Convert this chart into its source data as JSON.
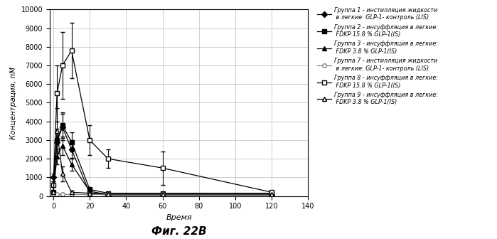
{
  "title": "Фиг. 22В",
  "xlabel": "Время",
  "ylabel": "Концентрация, пМ",
  "xlim": [
    -2,
    140
  ],
  "ylim": [
    0,
    10000
  ],
  "yticks": [
    0,
    1000,
    2000,
    3000,
    4000,
    5000,
    6000,
    7000,
    8000,
    9000,
    10000
  ],
  "xticks": [
    0,
    20,
    40,
    60,
    80,
    100,
    120,
    140
  ],
  "series": [
    {
      "label": "Группа 1 - инстилляция жидкости\n в легкие: GLP-1- контроль (LIS)",
      "x": [
        0,
        2,
        5,
        10,
        20,
        30,
        60,
        120
      ],
      "y": [
        1000,
        2900,
        3700,
        2500,
        150,
        50,
        50,
        50
      ],
      "yerr": [
        200,
        500,
        700,
        500,
        50,
        30,
        30,
        30
      ],
      "marker": "D",
      "filled": true,
      "color": "black"
    },
    {
      "label": "Группа 2 - инсуффляция в легкие:\n FDKP 15.8 % GLP-1(IS)",
      "x": [
        0,
        2,
        5,
        10,
        20,
        30,
        60,
        120
      ],
      "y": [
        200,
        3000,
        3800,
        2900,
        350,
        150,
        150,
        150
      ],
      "yerr": [
        50,
        600,
        700,
        500,
        80,
        50,
        50,
        50
      ],
      "marker": "s",
      "filled": true,
      "color": "black"
    },
    {
      "label": "Группа 3 - инсуффляция в легкие:\n FDKP 3.8 % GLP-1(IS)",
      "x": [
        0,
        2,
        5,
        10,
        20,
        30,
        60,
        120
      ],
      "y": [
        200,
        2100,
        2700,
        1700,
        250,
        80,
        80,
        80
      ],
      "yerr": [
        50,
        400,
        500,
        350,
        60,
        30,
        30,
        30
      ],
      "marker": "^",
      "filled": true,
      "color": "black"
    },
    {
      "label": "Группа 7 - инстилляция жидкости\n в легкие: GLP-1- контроль (LIS)",
      "x": [
        0,
        2,
        5,
        10,
        20,
        30,
        60,
        120
      ],
      "y": [
        100,
        100,
        100,
        100,
        100,
        100,
        100,
        100
      ],
      "yerr": [
        20,
        20,
        20,
        20,
        20,
        20,
        20,
        20
      ],
      "marker": "o",
      "filled": false,
      "color": "gray"
    },
    {
      "label": "Группа 8 - инсуффляция в легкие:\n FDKP 15.8 % GLP-1(IS)",
      "x": [
        0,
        2,
        5,
        10,
        20,
        30,
        60,
        120
      ],
      "y": [
        600,
        5500,
        7000,
        7800,
        3000,
        2000,
        1500,
        200
      ],
      "yerr": [
        100,
        1500,
        1800,
        1500,
        800,
        500,
        900,
        100
      ],
      "marker": "s",
      "filled": false,
      "color": "black"
    },
    {
      "label": "Группа 9 - инсуффляция в легкие:\n FDKP 3.8 % GLP-1(IS)",
      "x": [
        0,
        2,
        5,
        10,
        20,
        30,
        60,
        120
      ],
      "y": [
        200,
        3500,
        1200,
        200,
        150,
        100,
        100,
        100
      ],
      "yerr": [
        50,
        1200,
        400,
        80,
        50,
        30,
        30,
        30
      ],
      "marker": "^",
      "filled": false,
      "color": "black"
    }
  ],
  "legend_labels": [
    "Группа 1 - инстилляция жидкости\n в легкие: GLP-1- контроль (LIS)",
    "Группа 2 - инсуффляция в легкие:\n FDKP 15.8 % GLP-1(IS)",
    "Группа 3 - инсуффляция в легкие:\n FDKP 3.8 % GLP-1(IS)",
    "Группа 7 - инстилляция жидкости\n в легкие: GLP-1- контроль (LIS)",
    "Группа 8 - инсуффляция в легкие:\n FDKP 15.8 % GLP-1(IS)",
    "Группа 9 - инсуффляция в легкие:\n FDKP 3.8 % GLP-1(IS)"
  ],
  "background_color": "#ffffff"
}
